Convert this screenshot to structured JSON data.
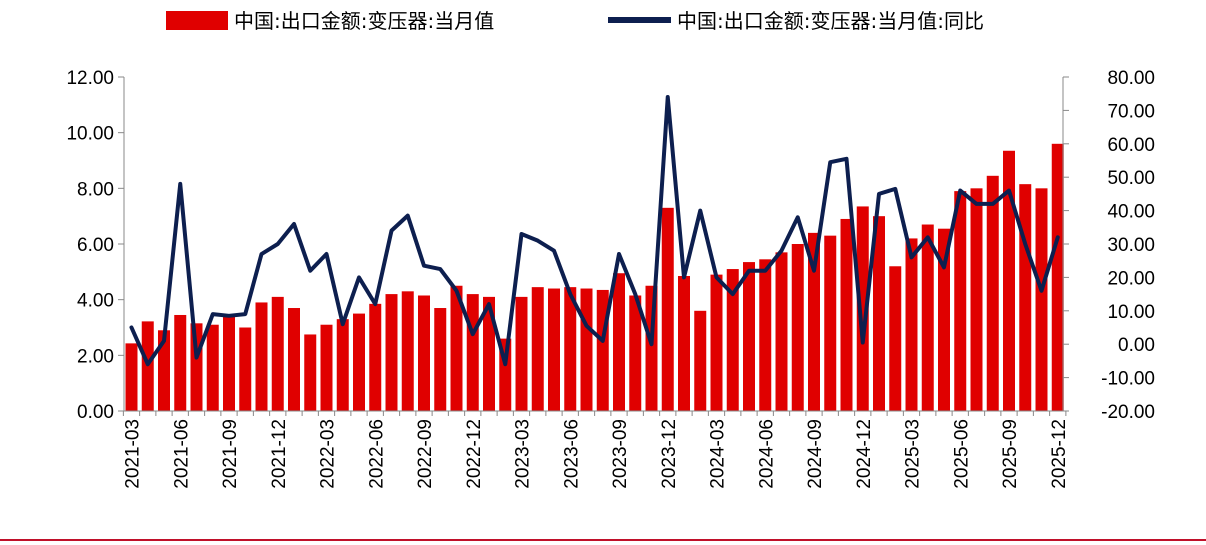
{
  "chart_data": {
    "type": "bar+line",
    "legend_position": "top",
    "grid": false,
    "colors": {
      "bar": "#e00000",
      "line": "#0d1f4f",
      "axis": "#888888",
      "bottom_rule": "#c0102a"
    },
    "series": [
      {
        "name": "中国:出口金额:变压器:当月值",
        "type": "bar",
        "axis": "left",
        "values": [
          2.43,
          3.22,
          2.9,
          3.45,
          3.15,
          3.1,
          3.4,
          3.0,
          3.9,
          4.1,
          3.7,
          2.75,
          3.1,
          3.3,
          3.5,
          3.85,
          4.2,
          4.3,
          4.15,
          3.7,
          4.5,
          4.2,
          4.1,
          2.6,
          4.1,
          4.45,
          4.4,
          4.45,
          4.4,
          4.35,
          4.95,
          4.15,
          4.5,
          7.3,
          4.85,
          3.6,
          4.9,
          5.1,
          5.35,
          5.45,
          5.7,
          6.0,
          6.4,
          6.3,
          6.9,
          7.35,
          7.0,
          5.2,
          6.2,
          6.7,
          6.55,
          7.9,
          8.0,
          8.45,
          9.35,
          8.15,
          8.0,
          9.6
        ]
      },
      {
        "name": "中国:出口金额:变压器:当月值:同比",
        "type": "line",
        "axis": "right",
        "values": [
          5,
          -6,
          1,
          48,
          -4,
          9,
          8.5,
          9,
          27,
          30,
          36,
          22,
          27,
          6,
          20,
          12,
          34,
          38.5,
          23.5,
          22.5,
          16,
          3,
          12,
          -6,
          33,
          31,
          28,
          15,
          5.5,
          1,
          27,
          15,
          0,
          74,
          20,
          40,
          20,
          15,
          22,
          22,
          28,
          38,
          22,
          54.5,
          55.5,
          0.5,
          45,
          46.5,
          26,
          32,
          23,
          46,
          42,
          42,
          46,
          30,
          16,
          32
        ]
      }
    ],
    "x": [
      "2021-03",
      "2021-04",
      "2021-05",
      "2021-06",
      "2021-07",
      "2021-08",
      "2021-09",
      "2021-10",
      "2021-11",
      "2021-12",
      "2022-01",
      "2022-02",
      "2022-03",
      "2022-04",
      "2022-05",
      "2022-06",
      "2022-07",
      "2022-08",
      "2022-09",
      "2022-10",
      "2022-11",
      "2022-12",
      "2023-01",
      "2023-02",
      "2023-03",
      "2023-04",
      "2023-05",
      "2023-06",
      "2023-07",
      "2023-08",
      "2023-09",
      "2023-10",
      "2023-11",
      "2023-12",
      "2024-01",
      "2024-02",
      "2024-03",
      "2024-04",
      "2024-05",
      "2024-06",
      "2024-07",
      "2024-08",
      "2024-09",
      "2024-10",
      "2024-11",
      "2024-12",
      "2025-01",
      "2025-02",
      "2025-03",
      "2025-04",
      "2025-05",
      "2025-06",
      "2025-07",
      "2025-08",
      "2025-09",
      "2025-10",
      "2025-11",
      "2025-12"
    ],
    "x_tick_labels": [
      "2021-03",
      "2021-06",
      "2021-09",
      "2021-12",
      "2022-03",
      "2022-06",
      "2022-09",
      "2022-12",
      "2023-03",
      "2023-06",
      "2023-09",
      "2023-12",
      "2024-03",
      "2024-06",
      "2024-09",
      "2024-12",
      "2025-03",
      "2025-06",
      "2025-09",
      "2025-12"
    ],
    "y_left": {
      "lim": [
        0,
        12
      ],
      "ticks": [
        "0.00",
        "2.00",
        "4.00",
        "6.00",
        "8.00",
        "10.00",
        "12.00"
      ]
    },
    "y_right": {
      "lim": [
        -20,
        80
      ],
      "ticks": [
        "-20.00",
        "-10.00",
        "0.00",
        "10.00",
        "20.00",
        "30.00",
        "40.00",
        "50.00",
        "60.00",
        "70.00",
        "80.00"
      ]
    },
    "title": "",
    "xlabel": "",
    "ylabel": "",
    "ylabel_right": ""
  }
}
